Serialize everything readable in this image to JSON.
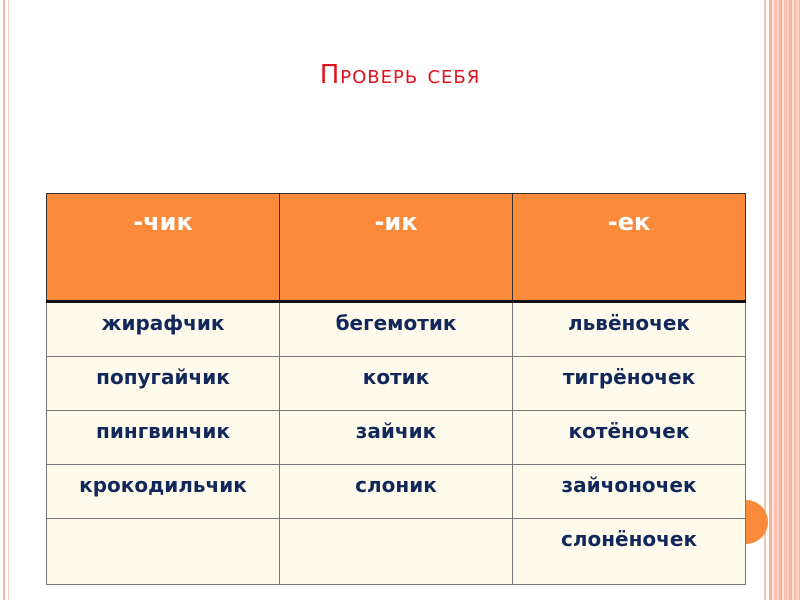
{
  "title": "Проверь себя",
  "table": {
    "headers": [
      "-чик",
      "-ик",
      "-ек"
    ],
    "rows": [
      [
        "жирафчик",
        "бегемотик",
        "львёночек"
      ],
      [
        "попугайчик",
        "котик",
        "тигрёночек"
      ],
      [
        "пингвинчик",
        "зайчик",
        "котёночек"
      ],
      [
        "крокодильчик",
        "слоник",
        "зайчоночек"
      ],
      [
        "",
        "",
        "слонёночек"
      ]
    ]
  },
  "colors": {
    "title": "#e0141e",
    "header": "#fb8a3a",
    "text": "#13285a"
  }
}
